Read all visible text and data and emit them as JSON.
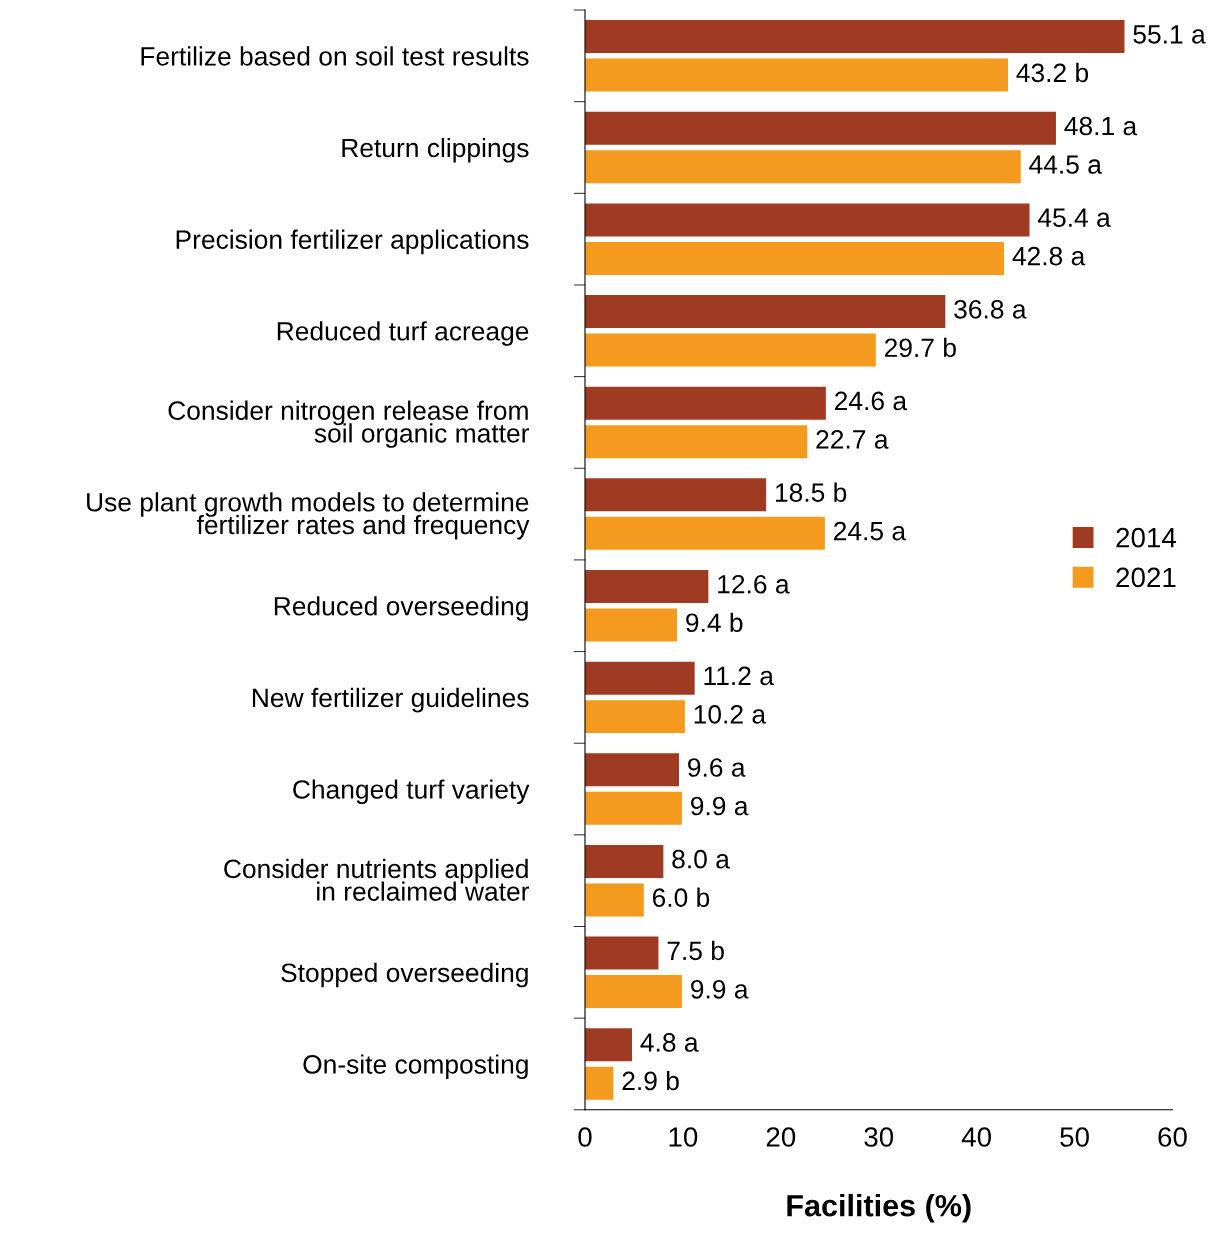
{
  "chart_data": {
    "type": "bar",
    "orientation": "horizontal",
    "xlabel": "Facilities (%)",
    "categories": [
      "Fertilize based on soil test results",
      "Return clippings",
      "Precision fertilizer applications",
      "Reduced turf acreage",
      "Consider nitrogen release from\nsoil organic matter",
      "Use plant growth models to determine\nfertilizer rates and frequency",
      "Reduced overseeding",
      "New fertilizer guidelines",
      "Changed turf variety",
      "Consider nutrients applied\nin reclaimed water",
      "Stopped overseeding",
      "On-site composting"
    ],
    "series": [
      {
        "name": "2014",
        "color": "#9e3b22",
        "values": [
          55.1,
          48.1,
          45.4,
          36.8,
          24.6,
          18.5,
          12.6,
          11.2,
          9.6,
          8.0,
          7.5,
          4.8
        ],
        "value_labels": [
          "55.1 a",
          "48.1 a",
          "45.4 a",
          "36.8 a",
          "24.6 a",
          "18.5 b",
          "12.6 a",
          "11.2 a",
          "9.6 a",
          "8.0 a",
          "7.5 b",
          "4.8 a"
        ]
      },
      {
        "name": "2021",
        "color": "#f39a1f",
        "values": [
          43.2,
          44.5,
          42.8,
          29.7,
          22.7,
          24.5,
          9.4,
          10.2,
          9.9,
          6.0,
          9.9,
          2.9
        ],
        "value_labels": [
          "43.2 b",
          "44.5 a",
          "42.8 a",
          "29.7 b",
          "22.7 a",
          "24.5 a",
          "9.4 b",
          "10.2 a",
          "9.9 a",
          "6.0 b",
          "9.9 a",
          "2.9 b"
        ]
      }
    ],
    "xlim": [
      0,
      60
    ],
    "xticks": [
      0,
      10,
      20,
      30,
      40,
      50,
      60
    ],
    "grid": false,
    "legend": "right"
  }
}
